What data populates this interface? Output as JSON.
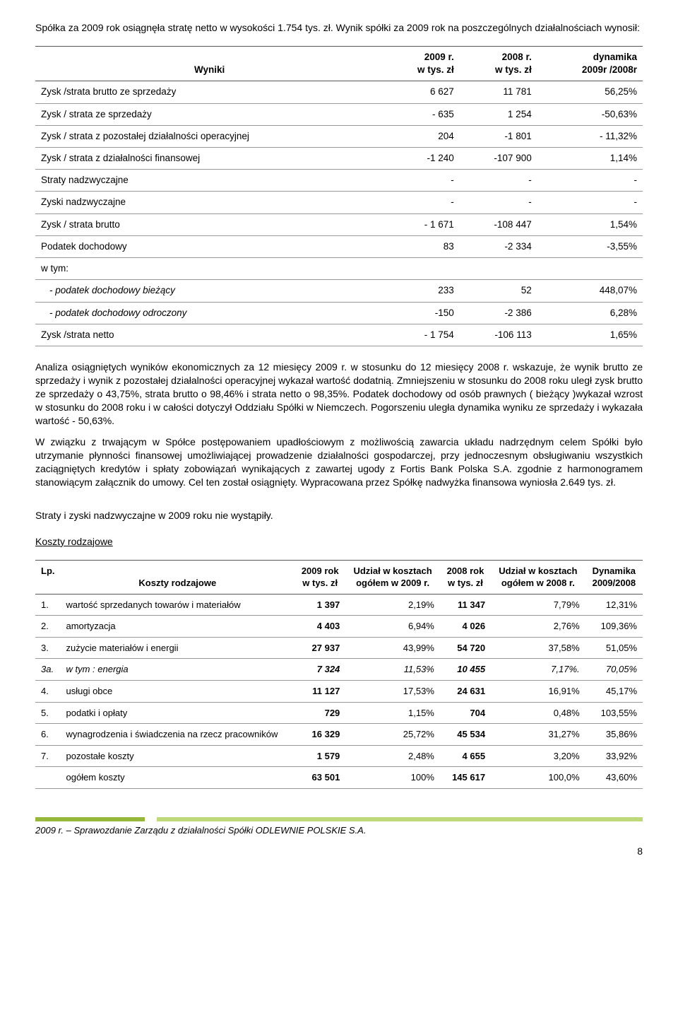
{
  "intro": "Spółka za  2009 rok osiągnęła  stratę netto w wysokości 1.754 tys. zł.  Wynik  spółki za 2009 rok na poszczególnych działalnościach  wynosił:",
  "results_table": {
    "headers": {
      "col0": "Wyniki",
      "col1_line1": "2009 r.",
      "col1_line2": "w tys. zł",
      "col2_line1": "2008 r.",
      "col2_line2": "w tys. zł",
      "col3_line1": "dynamika",
      "col3_line2": "2009r /2008r"
    },
    "rows": [
      {
        "label": "Zysk /strata brutto ze sprzedaży",
        "c1": "6 627",
        "c2": "11 781",
        "c3": "56,25%",
        "italic": false
      },
      {
        "label": "Zysk / strata ze sprzedaży",
        "c1": "- 635",
        "c2": "1 254",
        "c3": "-50,63%",
        "italic": false
      },
      {
        "label": "Zysk / strata z pozostałej działalności operacyjnej",
        "c1": "204",
        "c2": "-1 801",
        "c3": "- 11,32%",
        "italic": false
      },
      {
        "label": "Zysk / strata z działalności finansowej",
        "c1": "-1 240",
        "c2": "-107 900",
        "c3": "1,14%",
        "italic": false
      },
      {
        "label": "Straty nadzwyczajne",
        "c1": "-",
        "c2": "-",
        "c3": "-",
        "italic": false
      },
      {
        "label": "Zyski nadzwyczajne",
        "c1": "-",
        "c2": "-",
        "c3": "-",
        "italic": false
      },
      {
        "label": "Zysk / strata brutto",
        "c1": "- 1 671",
        "c2": "-108 447",
        "c3": "1,54%",
        "italic": false
      },
      {
        "label": "Podatek dochodowy",
        "c1": "83",
        "c2": "-2 334",
        "c3": "-3,55%",
        "italic": false
      },
      {
        "label": "w tym:",
        "c1": "",
        "c2": "",
        "c3": "",
        "italic": false
      },
      {
        "label": "- podatek dochodowy bieżący",
        "c1": "233",
        "c2": "52",
        "c3": "448,07%",
        "italic": true
      },
      {
        "label": "- podatek dochodowy odroczony",
        "c1": "-150",
        "c2": "-2 386",
        "c3": "6,28%",
        "italic": true
      },
      {
        "label": "Zysk /strata netto",
        "c1": "- 1 754",
        "c2": "-106 113",
        "c3": "1,65%",
        "italic": false
      }
    ]
  },
  "para1": "Analiza osiągniętych wyników ekonomicznych za 12 miesięcy 2009 r. w stosunku do 12 miesięcy  2008 r. wskazuje, że wynik brutto ze sprzedaży i wynik z pozostałej działalności operacyjnej  wykazał wartość dodatnią. Zmniejszeniu w stosunku do 2008 roku uległ  zysk brutto ze sprzedaży  o 43,75%, strata brutto o 98,46% i  strata netto  o 98,35%. Podatek dochodowy od osób prawnych ( bieżący )wykazał wzrost w stosunku do 2008 roku i w  całości dotyczył Oddziału  Spółki w Niemczech. Pogorszeniu uległa  dynamika  wyniku  ze sprzedaży i wykazała wartość - 50,63%.",
  "para2": "W związku z  trwającym w Spółce postępowaniem upadłościowym z możliwością zawarcia układu nadrzędnym celem Spółki było utrzymanie płynności finansowej umożliwiającej prowadzenie działalności gospodarczej, przy jednoczesnym obsługiwaniu wszystkich zaciągniętych kredytów i spłaty zobowiązań wynikających z zawartej ugody z Fortis Bank Polska S.A.  zgodnie z harmonogramem stanowiącym załącznik do umowy. Cel ten został osiągnięty. Wypracowana przez Spółkę nadwyżka finansowa  wyniosła  2.649 tys. zł.",
  "para3": "Straty i zyski nadzwyczajne w  2009 roku nie wystąpiły.",
  "section_costs": "Koszty rodzajowe",
  "costs_table": {
    "headers": {
      "lp": "Lp.",
      "name": "Koszty rodzajowe",
      "c1a": "2009 rok",
      "c1b": "w tys. zł",
      "c2a": "Udział w kosztach",
      "c2b": "ogółem w  2009 r.",
      "c3a": "2008 rok",
      "c3b": "w tys. zł",
      "c4a": "Udział w kosztach",
      "c4b": "ogółem w  2008 r.",
      "c5a": "Dynamika",
      "c5b": "2009/2008"
    },
    "rows": [
      {
        "num": "1.",
        "name": "wartość sprzedanych towarów i materiałów",
        "c1": "1 397",
        "c2": "2,19%",
        "c3": "11 347",
        "c4": "7,79%",
        "c5": "12,31%",
        "italic": false
      },
      {
        "num": "2.",
        "name": "amortyzacja",
        "c1": "4 403",
        "c2": "6,94%",
        "c3": "4 026",
        "c4": "2,76%",
        "c5": "109,36%",
        "italic": false
      },
      {
        "num": "3.",
        "name": "zużycie materiałów i energii",
        "c1": "27 937",
        "c2": "43,99%",
        "c3": "54 720",
        "c4": "37,58%",
        "c5": "51,05%",
        "italic": false
      },
      {
        "num": "3a.",
        "name": "w tym : energia",
        "c1": "7 324",
        "c2": "11,53%",
        "c3": "10 455",
        "c4": "7,17%.",
        "c5": "70,05%",
        "italic": true
      },
      {
        "num": "4.",
        "name": "usługi obce",
        "c1": "11 127",
        "c2": "17,53%",
        "c3": "24 631",
        "c4": "16,91%",
        "c5": "45,17%",
        "italic": false
      },
      {
        "num": "5.",
        "name": "podatki i opłaty",
        "c1": "729",
        "c2": "1,15%",
        "c3": "704",
        "c4": "0,48%",
        "c5": "103,55%",
        "italic": false
      },
      {
        "num": "6.",
        "name": "wynagrodzenia i świadczenia na rzecz pracowników",
        "c1": "16 329",
        "c2": "25,72%",
        "c3": "45 534",
        "c4": "31,27%",
        "c5": "35,86%",
        "italic": false
      },
      {
        "num": "7.",
        "name": "pozostałe koszty",
        "c1": "1 579",
        "c2": "2,48%",
        "c3": "4 655",
        "c4": "3,20%",
        "c5": "33,92%",
        "italic": false
      },
      {
        "num": "",
        "name": "ogółem koszty",
        "c1": "63 501",
        "c2": "100%",
        "c3": "145 617",
        "c4": "100,0%",
        "c5": "43,60%",
        "italic": false
      }
    ]
  },
  "footer": "2009 r. – Sprawozdanie Zarządu z działalności Spółki ODLEWNIE POLSKIE S.A.",
  "page": "8"
}
